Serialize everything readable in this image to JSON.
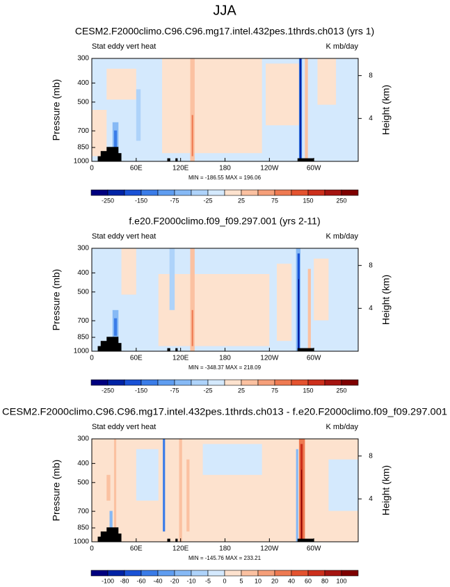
{
  "title": "JJA",
  "chart_data": [
    {
      "type": "contour",
      "title": "CESM2.F2000climo.C96.C96.mg17.intel.432pes.1thrds.ch013 (yrs 1)",
      "left_label": "Stat eddy vert heat",
      "right_label": "K mb/day",
      "ylabel": "Pressure (mb)",
      "y2label": "Height (km)",
      "xlim": [
        0,
        360
      ],
      "xticks": [
        0,
        {
          "value": 60,
          "label": "60E"
        },
        {
          "value": 120,
          "label": "120E"
        },
        180,
        {
          "value": 240,
          "label": "120W"
        },
        {
          "value": 300,
          "label": "60W"
        }
      ],
      "ylim": [
        1000,
        300
      ],
      "log_y": true,
      "yticks": [
        300,
        400,
        500,
        700,
        850,
        1000
      ],
      "y2lim": [
        0,
        9.6
      ],
      "y2ticks": [
        4,
        8
      ],
      "stats": "MIN = -186.55  MAX = 196.06",
      "colorbar": {
        "labels": [
          -250,
          -150,
          -75,
          -25,
          25,
          75,
          150,
          250
        ],
        "colors": [
          "#00007f",
          "#0023a5",
          "#1a52d6",
          "#3a7ce8",
          "#5f9df0",
          "#86b9f5",
          "#aed3fa",
          "#d4e9fd",
          "#fde2ce",
          "#fbc1a1",
          "#f59f79",
          "#ee7a52",
          "#e4532f",
          "#cc2f1c",
          "#a51410",
          "#7f0000"
        ]
      }
    },
    {
      "type": "contour",
      "title": "f.e20.F2000climo.f09_f09.297.001 (yrs 2-11)",
      "left_label": "Stat eddy vert heat",
      "right_label": "K mb/day",
      "ylabel": "Pressure (mb)",
      "y2label": "Height (km)",
      "xlim": [
        0,
        360
      ],
      "xticks": [
        0,
        {
          "value": 60,
          "label": "60E"
        },
        {
          "value": 120,
          "label": "120E"
        },
        180,
        {
          "value": 240,
          "label": "120W"
        },
        {
          "value": 300,
          "label": "60W"
        }
      ],
      "ylim": [
        1000,
        300
      ],
      "log_y": true,
      "yticks": [
        300,
        400,
        500,
        700,
        850,
        1000
      ],
      "y2lim": [
        0,
        9.6
      ],
      "y2ticks": [
        4,
        8
      ],
      "stats": "MIN = -348.37  MAX = 218.09",
      "colorbar": {
        "labels": [
          -250,
          -150,
          -75,
          -25,
          25,
          75,
          150,
          250
        ],
        "colors": [
          "#00007f",
          "#0023a5",
          "#1a52d6",
          "#3a7ce8",
          "#5f9df0",
          "#86b9f5",
          "#aed3fa",
          "#d4e9fd",
          "#fde2ce",
          "#fbc1a1",
          "#f59f79",
          "#ee7a52",
          "#e4532f",
          "#cc2f1c",
          "#a51410",
          "#7f0000"
        ]
      }
    },
    {
      "type": "contour",
      "title": "CESM2.F2000climo.C96.C96.mg17.intel.432pes.1thrds.ch013 - f.e20.F2000climo.f09_f09.297.001",
      "left_label": "Stat eddy vert heat",
      "right_label": "K mb/day",
      "ylabel": "Pressure (mb)",
      "y2label": "Height (km)",
      "xlim": [
        0,
        360
      ],
      "xticks": [
        0,
        {
          "value": 60,
          "label": "60E"
        },
        {
          "value": 120,
          "label": "120E"
        },
        180,
        {
          "value": 240,
          "label": "120W"
        },
        {
          "value": 300,
          "label": "60W"
        }
      ],
      "ylim": [
        1000,
        300
      ],
      "log_y": true,
      "yticks": [
        300,
        400,
        500,
        700,
        850,
        1000
      ],
      "y2lim": [
        0,
        9.6
      ],
      "y2ticks": [
        4,
        8
      ],
      "stats": "MIN = -145.76  MAX = 233.21",
      "colorbar": {
        "labels": [
          -100,
          -80,
          -60,
          -40,
          -20,
          -10,
          -5,
          0,
          5,
          10,
          20,
          40,
          60,
          80,
          100
        ],
        "colors": [
          "#00007f",
          "#0023a5",
          "#1a52d6",
          "#3a7ce8",
          "#5f9df0",
          "#86b9f5",
          "#aed3fa",
          "#d4e9fd",
          "#fde2ce",
          "#fbc1a1",
          "#f59f79",
          "#ee7a52",
          "#e4532f",
          "#cc2f1c",
          "#a51410",
          "#7f0000"
        ]
      }
    }
  ]
}
